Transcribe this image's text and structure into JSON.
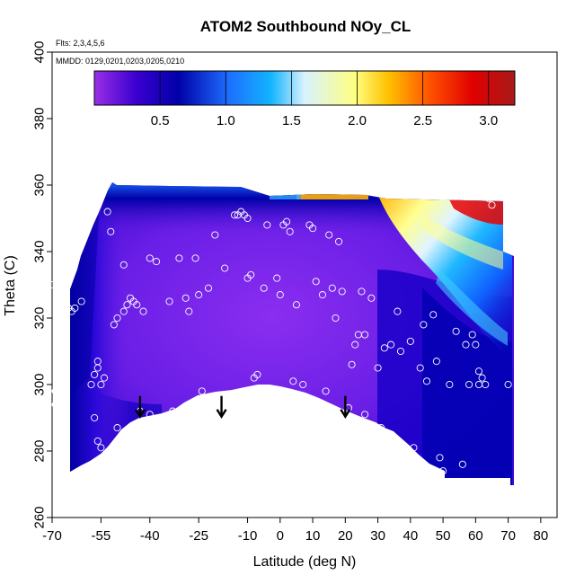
{
  "chart_data": {
    "type": "heatmap",
    "title": "ATOM2 Southbound NOy_CL",
    "xlabel": "Latitude (deg N)",
    "ylabel": "Theta (C)",
    "xlim": [
      -70,
      85
    ],
    "ylim": [
      260,
      400
    ],
    "x_ticks": [
      -70,
      -55,
      -40,
      -25,
      -10,
      0,
      10,
      20,
      30,
      40,
      50,
      60,
      70,
      80
    ],
    "x_ticks_labeled": [
      -70,
      -55,
      -40,
      -25,
      -10,
      0,
      10,
      20,
      30,
      40,
      50,
      60,
      70,
      80
    ],
    "y_ticks": [
      260,
      280,
      300,
      320,
      340,
      360,
      380,
      400
    ],
    "flights_note": "Flts: 2,3,4,5,6",
    "dates_note": "MMDD: 0129,0201,0203,0205,0210",
    "colorbar": {
      "min": 0,
      "max": 3.2,
      "ticks": [
        0.5,
        1.0,
        1.5,
        2.0,
        2.5,
        3.0
      ],
      "tick_labels": [
        "0.5",
        "1.0",
        "1.5",
        "2.0",
        "2.5",
        "3.0"
      ],
      "divisions": [
        0.5,
        1.0,
        1.5,
        2.0,
        2.5,
        3.0
      ],
      "colors": [
        "#9a2fe6",
        "#3a00d0",
        "#0000a8",
        "#1e6fff",
        "#12b4ff",
        "#d8f2ff",
        "#ffff80",
        "#ffc000",
        "#ff5000",
        "#e00000",
        "#a81a1a"
      ]
    },
    "arrow_latitudes": [
      -43,
      -18,
      20
    ],
    "arrow_theta": 289,
    "samples": [
      [
        -70,
        330
      ],
      [
        -69,
        298
      ],
      [
        -69,
        294
      ],
      [
        -68,
        335
      ],
      [
        -67,
        337
      ],
      [
        -66,
        334
      ],
      [
        -65,
        323
      ],
      [
        -64,
        322
      ],
      [
        -63,
        323
      ],
      [
        -61,
        325
      ],
      [
        -58,
        300
      ],
      [
        -57,
        303
      ],
      [
        -56,
        305
      ],
      [
        -56,
        283
      ],
      [
        -55,
        281
      ],
      [
        -57,
        290
      ],
      [
        -56,
        307
      ],
      [
        -55,
        300
      ],
      [
        -54,
        302
      ],
      [
        -53,
        352
      ],
      [
        -52,
        346
      ],
      [
        -51,
        318
      ],
      [
        -50,
        320
      ],
      [
        -50,
        287
      ],
      [
        -48,
        336
      ],
      [
        -48,
        322
      ],
      [
        -47,
        324
      ],
      [
        -46,
        326
      ],
      [
        -45,
        325
      ],
      [
        -44,
        324
      ],
      [
        -43,
        292
      ],
      [
        -42,
        322
      ],
      [
        -40,
        291
      ],
      [
        -40,
        338
      ],
      [
        -38,
        337
      ],
      [
        -34,
        325
      ],
      [
        -33,
        292
      ],
      [
        -31,
        338
      ],
      [
        -29,
        326
      ],
      [
        -28,
        322
      ],
      [
        -26,
        338
      ],
      [
        -25,
        327
      ],
      [
        -24,
        298
      ],
      [
        -22,
        329
      ],
      [
        -20,
        345
      ],
      [
        -17,
        335
      ],
      [
        -14,
        351
      ],
      [
        -13,
        351
      ],
      [
        -12,
        352
      ],
      [
        -11,
        351
      ],
      [
        -10,
        350
      ],
      [
        -10,
        332
      ],
      [
        -9,
        333
      ],
      [
        -8,
        302
      ],
      [
        -7,
        303
      ],
      [
        -5,
        329
      ],
      [
        -4,
        348
      ],
      [
        -1,
        332
      ],
      [
        0,
        327
      ],
      [
        1,
        348
      ],
      [
        2,
        349
      ],
      [
        3,
        346
      ],
      [
        4,
        301
      ],
      [
        5,
        324
      ],
      [
        7,
        300
      ],
      [
        9,
        348
      ],
      [
        10,
        347
      ],
      [
        11,
        331
      ],
      [
        13,
        327
      ],
      [
        14,
        298
      ],
      [
        15,
        345
      ],
      [
        16,
        329
      ],
      [
        17,
        320
      ],
      [
        18,
        343
      ],
      [
        19,
        328
      ],
      [
        21,
        293
      ],
      [
        22,
        306
      ],
      [
        23,
        312
      ],
      [
        24,
        315
      ],
      [
        25,
        328
      ],
      [
        26,
        315
      ],
      [
        26,
        291
      ],
      [
        28,
        326
      ],
      [
        30,
        305
      ],
      [
        31,
        287
      ],
      [
        32,
        311
      ],
      [
        34,
        312
      ],
      [
        36,
        322
      ],
      [
        37,
        310
      ],
      [
        40,
        313
      ],
      [
        41,
        281
      ],
      [
        43,
        305
      ],
      [
        44,
        318
      ],
      [
        45,
        301
      ],
      [
        47,
        321
      ],
      [
        48,
        307
      ],
      [
        49,
        278
      ],
      [
        50,
        274
      ],
      [
        52,
        300
      ],
      [
        54,
        316
      ],
      [
        56,
        276
      ],
      [
        57,
        312
      ],
      [
        58,
        300
      ],
      [
        59,
        315
      ],
      [
        60,
        312
      ],
      [
        61,
        304
      ],
      [
        61,
        300
      ],
      [
        62,
        302
      ],
      [
        63,
        300
      ],
      [
        64,
        356
      ],
      [
        65,
        354
      ],
      [
        70,
        300
      ]
    ]
  }
}
